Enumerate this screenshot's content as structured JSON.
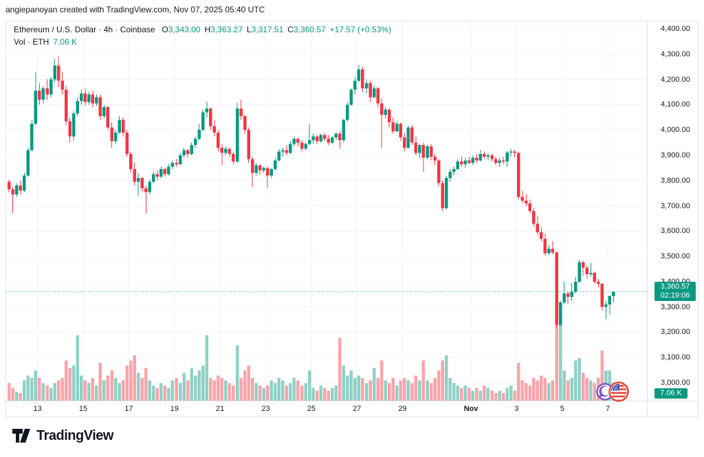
{
  "attribution": "angiepanoyan created with TradingView.com, Nov 07, 2025 05:40 UTC",
  "legend": {
    "title": "Ethereum / U.S. Dollar · 4h · Coinbase",
    "ohlc": {
      "o_label": "O",
      "o": "3,343.00",
      "h_label": "H",
      "h": "3,363.27",
      "l_label": "L",
      "l": "3,317.51",
      "c_label": "C",
      "c": "3,360.57",
      "change": "+17.57 (+0.53%)"
    },
    "volume_row": {
      "label": "Vol · ETH",
      "value": "7.06 K"
    }
  },
  "price_badge": {
    "price": "3,360.57",
    "countdown": "02:19:06"
  },
  "volume_badge": {
    "value": "7.06 K"
  },
  "logo": {
    "text": "TradingView"
  },
  "colors": {
    "up": "#089981",
    "down": "#f23645",
    "vol_up": "rgba(8,153,129,0.45)",
    "vol_down": "rgba(242,54,69,0.45)",
    "accent": "#089981",
    "text": "#131722",
    "grid": "#f0f3fa",
    "border": "#e0e3eb"
  },
  "chart_data": {
    "type": "candlestick",
    "title": "Ethereum / U.S. Dollar · 4h · Coinbase",
    "exchange": "Coinbase",
    "interval": "4h",
    "last_ohlc": {
      "open": 3343.0,
      "high": 3363.27,
      "low": 3317.51,
      "close": 3360.57,
      "change_abs": 17.57,
      "change_pct": 0.53
    },
    "current_price": 3360.57,
    "current_price_label": "3,360.57",
    "countdown": "02:19:06",
    "current_volume_k": 7.06,
    "grid": true,
    "legend_position": "top-left",
    "price_axis": {
      "min": 3000,
      "max": 4400,
      "tick_values": [
        4400,
        4300,
        4200,
        4100,
        4000,
        3900,
        3800,
        3700,
        3600,
        3500,
        3400,
        3300,
        3200,
        3100,
        3000
      ],
      "tick_labels": [
        "4,400.00",
        "4,300.00",
        "4,200.00",
        "4,100.00",
        "4,000.00",
        "3,900.00",
        "3,800.00",
        "3,700.00",
        "3,600.00",
        "3,500.00",
        "3,400.00",
        "3,300.00",
        "3,200.00",
        "3,100.00",
        "3,000.00"
      ]
    },
    "time_ticks": [
      {
        "label": "13",
        "i": 7.5,
        "bold": false
      },
      {
        "label": "15",
        "i": 19.5,
        "bold": false
      },
      {
        "label": "17",
        "i": 31.5,
        "bold": false
      },
      {
        "label": "19",
        "i": 43.5,
        "bold": false
      },
      {
        "label": "21",
        "i": 55.5,
        "bold": false
      },
      {
        "label": "23",
        "i": 67.5,
        "bold": false
      },
      {
        "label": "25",
        "i": 79.5,
        "bold": false
      },
      {
        "label": "27",
        "i": 91.5,
        "bold": false
      },
      {
        "label": "29",
        "i": 103.5,
        "bold": false
      },
      {
        "label": "Nov",
        "i": 121.5,
        "bold": true
      },
      {
        "label": "3",
        "i": 133.5,
        "bold": false
      },
      {
        "label": "5",
        "i": 145.5,
        "bold": false
      },
      {
        "label": "7",
        "i": 157.5,
        "bold": false
      }
    ],
    "candles_format": [
      "open",
      "high",
      "low",
      "close",
      "volume_k"
    ],
    "candles": [
      [
        3795,
        3805,
        3755,
        3765,
        7
      ],
      [
        3765,
        3775,
        3670,
        3745,
        5
      ],
      [
        3745,
        3790,
        3735,
        3780,
        3.5
      ],
      [
        3780,
        3800,
        3745,
        3760,
        3
      ],
      [
        3760,
        3830,
        3755,
        3820,
        8
      ],
      [
        3820,
        3930,
        3815,
        3920,
        10
      ],
      [
        3920,
        4040,
        3915,
        4025,
        9
      ],
      [
        4025,
        4230,
        4020,
        4155,
        12
      ],
      [
        4155,
        4185,
        4100,
        4120,
        9
      ],
      [
        4120,
        4175,
        4105,
        4165,
        7
      ],
      [
        4165,
        4200,
        4120,
        4140,
        6
      ],
      [
        4140,
        4210,
        4130,
        4200,
        5
      ],
      [
        4200,
        4280,
        4190,
        4255,
        7
      ],
      [
        4255,
        4290,
        4170,
        4195,
        8
      ],
      [
        4195,
        4230,
        4140,
        4160,
        9
      ],
      [
        4160,
        4175,
        4020,
        4035,
        16
      ],
      [
        4035,
        4050,
        3950,
        3975,
        13
      ],
      [
        3975,
        4075,
        3960,
        4065,
        14
      ],
      [
        4065,
        4130,
        4055,
        4115,
        26
      ],
      [
        4115,
        4160,
        4100,
        4145,
        10
      ],
      [
        4145,
        4165,
        4095,
        4110,
        8
      ],
      [
        4110,
        4150,
        4100,
        4140,
        7
      ],
      [
        4140,
        4155,
        4090,
        4105,
        9
      ],
      [
        4105,
        4140,
        4095,
        4130,
        6
      ],
      [
        4130,
        4140,
        4040,
        4055,
        15
      ],
      [
        4055,
        4100,
        4045,
        4090,
        8
      ],
      [
        4090,
        4095,
        4000,
        4010,
        10
      ],
      [
        4010,
        4030,
        3930,
        3955,
        12
      ],
      [
        3955,
        4000,
        3945,
        3990,
        9
      ],
      [
        3990,
        4055,
        3985,
        4040,
        7
      ],
      [
        4040,
        4050,
        3975,
        3990,
        8
      ],
      [
        3990,
        4000,
        3895,
        3905,
        14
      ],
      [
        3905,
        3915,
        3830,
        3845,
        16
      ],
      [
        3845,
        3870,
        3780,
        3795,
        18
      ],
      [
        3795,
        3830,
        3740,
        3810,
        11
      ],
      [
        3810,
        3815,
        3755,
        3770,
        9
      ],
      [
        3770,
        3780,
        3670,
        3755,
        13
      ],
      [
        3755,
        3805,
        3745,
        3795,
        8
      ],
      [
        3795,
        3835,
        3790,
        3825,
        6
      ],
      [
        3825,
        3840,
        3800,
        3815,
        5
      ],
      [
        3815,
        3855,
        3810,
        3845,
        7
      ],
      [
        3845,
        3850,
        3815,
        3825,
        6
      ],
      [
        3825,
        3865,
        3820,
        3855,
        5
      ],
      [
        3855,
        3880,
        3845,
        3870,
        8
      ],
      [
        3870,
        3885,
        3855,
        3865,
        9
      ],
      [
        3865,
        3910,
        3860,
        3900,
        7
      ],
      [
        3900,
        3930,
        3890,
        3920,
        11
      ],
      [
        3920,
        3925,
        3890,
        3905,
        8
      ],
      [
        3905,
        3950,
        3900,
        3940,
        13
      ],
      [
        3940,
        3975,
        3930,
        3965,
        10
      ],
      [
        3965,
        4025,
        3960,
        4000,
        12
      ],
      [
        4000,
        4080,
        3995,
        4070,
        14
      ],
      [
        4070,
        4112,
        4050,
        4085,
        26
      ],
      [
        4085,
        4090,
        4000,
        4015,
        9
      ],
      [
        4015,
        4040,
        3975,
        3990,
        8
      ],
      [
        3990,
        4000,
        3915,
        3930,
        10
      ],
      [
        3930,
        3945,
        3860,
        3910,
        9
      ],
      [
        3910,
        3935,
        3900,
        3925,
        8
      ],
      [
        3925,
        3930,
        3895,
        3905,
        7
      ],
      [
        3905,
        3915,
        3865,
        3875,
        6
      ],
      [
        3875,
        4107,
        3870,
        4085,
        22
      ],
      [
        4085,
        4120,
        4040,
        4055,
        9
      ],
      [
        4055,
        4060,
        3985,
        4000,
        12
      ],
      [
        4000,
        4010,
        3870,
        3885,
        14
      ],
      [
        3885,
        3895,
        3775,
        3830,
        9
      ],
      [
        3830,
        3870,
        3820,
        3860,
        7
      ],
      [
        3860,
        3865,
        3825,
        3840,
        6
      ],
      [
        3840,
        3855,
        3830,
        3850,
        5
      ],
      [
        3850,
        3855,
        3772,
        3820,
        6
      ],
      [
        3820,
        3850,
        3810,
        3845,
        8
      ],
      [
        3845,
        3890,
        3840,
        3880,
        7
      ],
      [
        3880,
        3925,
        3875,
        3915,
        9
      ],
      [
        3915,
        3930,
        3895,
        3920,
        8
      ],
      [
        3920,
        3940,
        3900,
        3910,
        6
      ],
      [
        3910,
        3955,
        3905,
        3945,
        7
      ],
      [
        3945,
        3975,
        3935,
        3965,
        9
      ],
      [
        3965,
        3970,
        3935,
        3950,
        8
      ],
      [
        3950,
        3960,
        3915,
        3925,
        6
      ],
      [
        3925,
        3950,
        3920,
        3945,
        7
      ],
      [
        3945,
        4025,
        3940,
        3960,
        12
      ],
      [
        3960,
        3985,
        3945,
        3975,
        5
      ],
      [
        3975,
        3980,
        3945,
        3955,
        4
      ],
      [
        3955,
        3985,
        3950,
        3980,
        6
      ],
      [
        3980,
        3990,
        3955,
        3965,
        5
      ],
      [
        3965,
        3980,
        3940,
        3950,
        4
      ],
      [
        3950,
        3975,
        3945,
        3970,
        5
      ],
      [
        3970,
        3990,
        3960,
        3985,
        6
      ],
      [
        3985,
        3995,
        3927,
        3960,
        25
      ],
      [
        3960,
        4044,
        3950,
        4040,
        14
      ],
      [
        4040,
        4110,
        4035,
        4100,
        10
      ],
      [
        4100,
        4165,
        4095,
        4160,
        12
      ],
      [
        4160,
        4210,
        4140,
        4195,
        9
      ],
      [
        4195,
        4256,
        4190,
        4240,
        10
      ],
      [
        4240,
        4250,
        4150,
        4165,
        9
      ],
      [
        4165,
        4200,
        4145,
        4185,
        7
      ],
      [
        4185,
        4195,
        4110,
        4130,
        8
      ],
      [
        4130,
        4175,
        4125,
        4165,
        13
      ],
      [
        4165,
        4170,
        4090,
        4105,
        9
      ],
      [
        4105,
        4125,
        3930,
        4060,
        16
      ],
      [
        4060,
        4090,
        4045,
        4080,
        8
      ],
      [
        4080,
        4087,
        4010,
        4030,
        7
      ],
      [
        4030,
        4050,
        3985,
        3995,
        9
      ],
      [
        3995,
        4035,
        3990,
        4025,
        6
      ],
      [
        4025,
        4030,
        3955,
        3970,
        8
      ],
      [
        3970,
        3985,
        3916,
        3930,
        9
      ],
      [
        3930,
        4017,
        3925,
        4010,
        8
      ],
      [
        4010,
        4020,
        3940,
        3950,
        7
      ],
      [
        3950,
        3975,
        3900,
        3910,
        10
      ],
      [
        3910,
        3945,
        3889,
        3940,
        8
      ],
      [
        3940,
        3950,
        3835,
        3890,
        16
      ],
      [
        3890,
        3940,
        3885,
        3935,
        8
      ],
      [
        3935,
        3945,
        3880,
        3895,
        7
      ],
      [
        3895,
        3905,
        3860,
        3880,
        9
      ],
      [
        3880,
        3885,
        3775,
        3790,
        12
      ],
      [
        3790,
        3800,
        3680,
        3690,
        16
      ],
      [
        3690,
        3820,
        3685,
        3810,
        18
      ],
      [
        3810,
        3845,
        3795,
        3835,
        9
      ],
      [
        3835,
        3855,
        3820,
        3845,
        7
      ],
      [
        3845,
        3885,
        3840,
        3875,
        6
      ],
      [
        3875,
        3895,
        3855,
        3865,
        5
      ],
      [
        3865,
        3890,
        3850,
        3880,
        6
      ],
      [
        3880,
        3895,
        3865,
        3870,
        5
      ],
      [
        3870,
        3900,
        3860,
        3890,
        4
      ],
      [
        3890,
        3905,
        3870,
        3880,
        5
      ],
      [
        3880,
        3921,
        3875,
        3905,
        4
      ],
      [
        3905,
        3915,
        3885,
        3895,
        6
      ],
      [
        3895,
        3910,
        3880,
        3900,
        5
      ],
      [
        3900,
        3905,
        3875,
        3885,
        4
      ],
      [
        3885,
        3895,
        3860,
        3870,
        3
      ],
      [
        3870,
        3890,
        3855,
        3880,
        4
      ],
      [
        3880,
        3895,
        3865,
        3875,
        3
      ],
      [
        3875,
        3916,
        3854,
        3911,
        5
      ],
      [
        3911,
        3925,
        3895,
        3915,
        6
      ],
      [
        3915,
        3920,
        3890,
        3910,
        4
      ],
      [
        3910,
        3915,
        3726,
        3735,
        15
      ],
      [
        3735,
        3760,
        3712,
        3720,
        8
      ],
      [
        3720,
        3745,
        3698,
        3710,
        7
      ],
      [
        3710,
        3725,
        3672,
        3680,
        6
      ],
      [
        3680,
        3690,
        3620,
        3630,
        9
      ],
      [
        3630,
        3660,
        3585,
        3595,
        8
      ],
      [
        3595,
        3615,
        3560,
        3570,
        10
      ],
      [
        3570,
        3590,
        3503,
        3512,
        9
      ],
      [
        3512,
        3545,
        3505,
        3530,
        7
      ],
      [
        3530,
        3560,
        3508,
        3515,
        8
      ],
      [
        3515,
        3520,
        3218,
        3230,
        35
      ],
      [
        3230,
        3325,
        3223,
        3318,
        33
      ],
      [
        3318,
        3400,
        3310,
        3354,
        12
      ],
      [
        3354,
        3360,
        3313,
        3340,
        8
      ],
      [
        3340,
        3395,
        3324,
        3360,
        9
      ],
      [
        3360,
        3420,
        3354,
        3400,
        16
      ],
      [
        3400,
        3487,
        3395,
        3477,
        17
      ],
      [
        3477,
        3483,
        3423,
        3455,
        11
      ],
      [
        3455,
        3465,
        3412,
        3430,
        9
      ],
      [
        3430,
        3474,
        3420,
        3435,
        8
      ],
      [
        3435,
        3440,
        3392,
        3400,
        7
      ],
      [
        3400,
        3410,
        3378,
        3392,
        9
      ],
      [
        3392,
        3395,
        3286,
        3300,
        20
      ],
      [
        3300,
        3325,
        3251,
        3310,
        12
      ],
      [
        3310,
        3348,
        3270,
        3343,
        12
      ],
      [
        3343,
        3363.27,
        3317.51,
        3360.57,
        7.06
      ]
    ]
  }
}
